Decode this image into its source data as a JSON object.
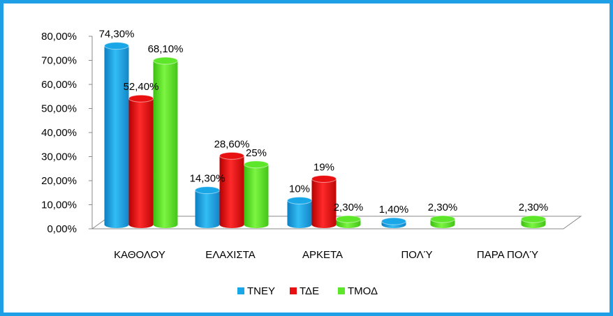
{
  "chart_data": {
    "type": "bar",
    "title": "",
    "xlabel": "",
    "ylabel": "",
    "ylim": [
      0,
      80
    ],
    "yticks": [
      "0,00%",
      "10,00%",
      "20,00%",
      "30,00%",
      "40,00%",
      "50,00%",
      "60,00%",
      "70,00%",
      "80,00%"
    ],
    "categories": [
      "ΚΑΘΟΛΟΥ",
      "ΕΛΑΧΙΣΤΑ",
      "ΑΡΚΕΤΑ",
      "ΠΟΛΎ",
      "ΠΑΡΑ ΠΟΛΎ"
    ],
    "series": [
      {
        "name": "ΤΝΕΥ",
        "color": "#1aa7e8",
        "values": [
          74.3,
          14.3,
          10,
          1.4,
          null
        ],
        "labels": [
          "74,30%",
          "14,30%",
          "10%",
          "1,40%",
          ""
        ]
      },
      {
        "name": "ΤΔΕ",
        "color": "#e81010",
        "values": [
          52.4,
          28.6,
          19,
          null,
          null
        ],
        "labels": [
          "52,40%",
          "28,60%",
          "19%",
          "",
          ""
        ]
      },
      {
        "name": "ΤΜΟΔ",
        "color": "#5ee62a",
        "values": [
          68.1,
          25,
          2.3,
          2.3,
          2.3
        ],
        "labels": [
          "68,10%",
          "25%",
          "2,30%",
          "2,30%",
          "2,30%"
        ]
      }
    ],
    "legend": "bottom",
    "grid": false
  }
}
